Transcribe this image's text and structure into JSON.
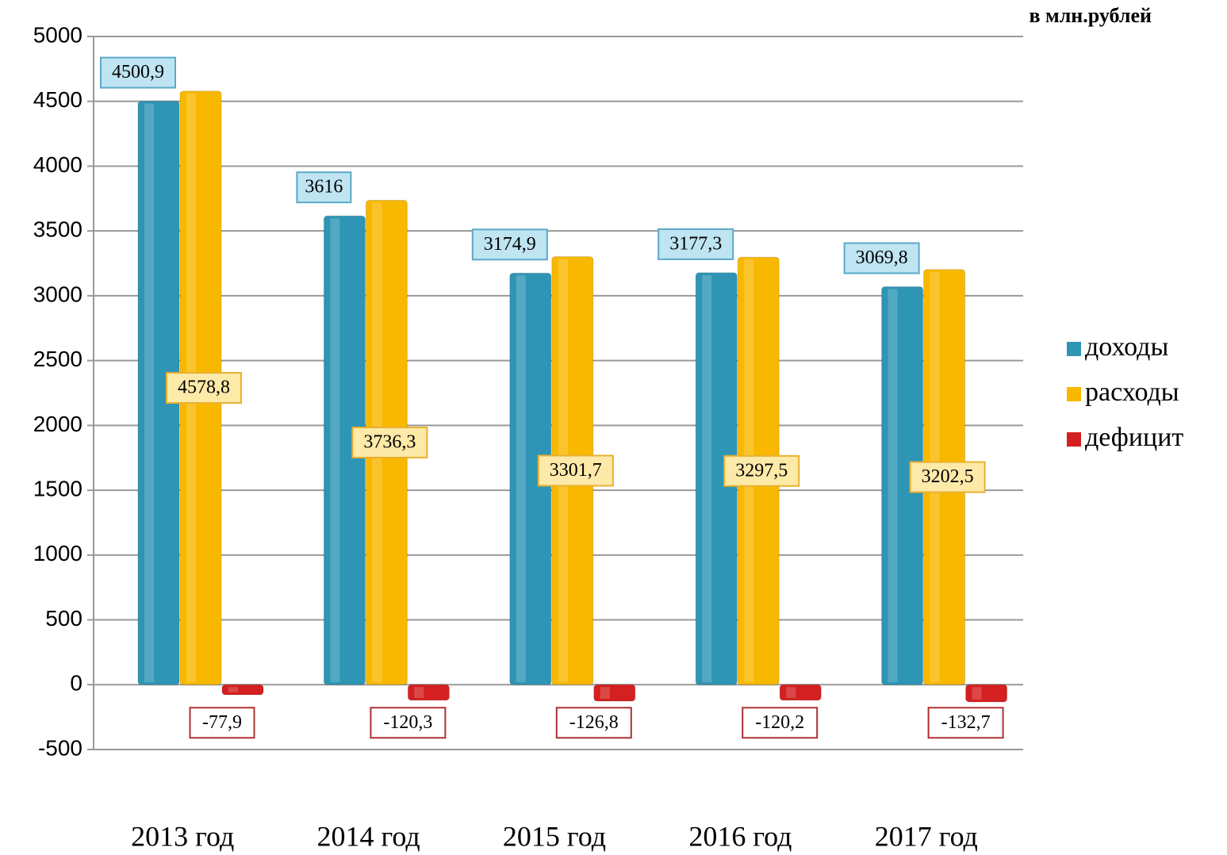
{
  "chart_data": {
    "type": "bar",
    "subtitle": "в млн.рублей",
    "categories": [
      "2013 год",
      "2014 год",
      "2015 год",
      "2016 год",
      "2017 год"
    ],
    "series": [
      {
        "name": "доходы",
        "color": "#2e95b5",
        "values": [
          4500.9,
          3616,
          3174.9,
          3177.3,
          3069.8
        ],
        "value_labels": [
          "4500,9",
          "3616",
          "3174,9",
          "3177,3",
          "3069,8"
        ]
      },
      {
        "name": "расходы",
        "color": "#f9b800",
        "values": [
          4578.8,
          3736.3,
          3301.7,
          3297.5,
          3202.5
        ],
        "value_labels": [
          "4578,8",
          "3736,3",
          "3301,7",
          "3297,5",
          "3202,5"
        ]
      },
      {
        "name": "дефицит",
        "color": "#d42020",
        "values": [
          -77.9,
          -120.3,
          -126.8,
          -120.2,
          -132.7
        ],
        "value_labels": [
          "-77,9",
          "-120,3",
          "-126,8",
          "-120,2",
          "-132,7"
        ]
      }
    ],
    "ylim": [
      -500,
      5000
    ],
    "yticks": [
      -500,
      0,
      500,
      1000,
      1500,
      2000,
      2500,
      3000,
      3500,
      4000,
      4500,
      5000
    ],
    "grid": true,
    "legend": "right"
  }
}
